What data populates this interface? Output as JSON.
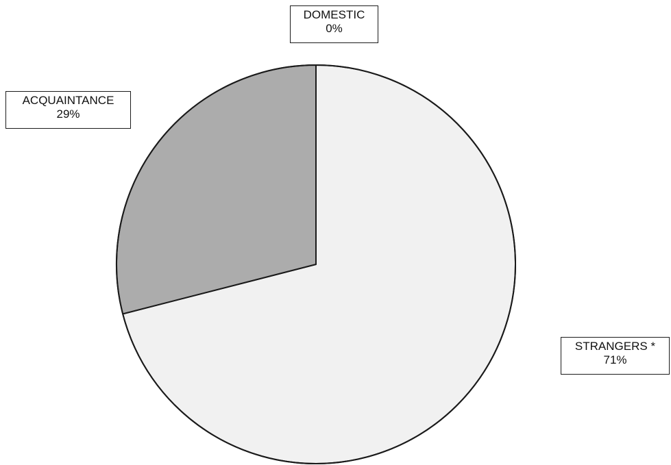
{
  "chart_data": {
    "type": "pie",
    "title": "",
    "slices": [
      {
        "label": "DOMESTIC",
        "value": 0,
        "percent_label": "0%",
        "color": "#ffffff"
      },
      {
        "label": "STRANGERS *",
        "value": 71,
        "percent_label": "71%",
        "color": "#f1f1f1"
      },
      {
        "label": "ACQUAINTANCE",
        "value": 29,
        "percent_label": "29%",
        "color": "#acacac"
      }
    ],
    "start_angle_deg": 0,
    "direction": "clockwise",
    "outline_color": "#1a1a1a"
  }
}
